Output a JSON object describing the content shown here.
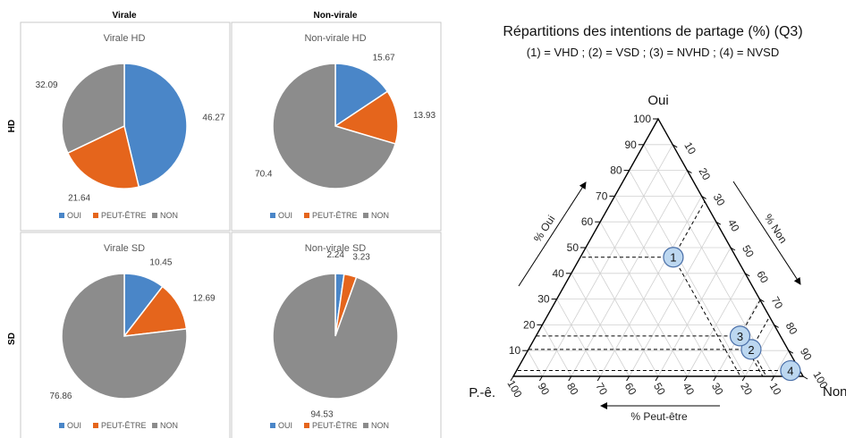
{
  "colors": {
    "oui": "#4a86c8",
    "peut_etre": "#e5651c",
    "non": "#8c8c8c",
    "panel_border": "#c8c8c8",
    "point_fill": "#bcd7f0",
    "point_stroke": "#4a6fa8",
    "grid": "#d0d0d0"
  },
  "left": {
    "col_headers": [
      "Virale",
      "Non-virale"
    ],
    "row_headers": [
      "HD",
      "SD"
    ],
    "legend_labels": [
      "OUI",
      "PEUT-ÊTRE",
      "NON"
    ]
  },
  "ternary_title": "Répartitions des intentions de partage (%) (Q3)",
  "ternary_subtitle": "(1) = VHD ; (2) = VSD ; (3) = NVHD ; (4) = NVSD",
  "chart_data": [
    {
      "type": "pie",
      "title": "Virale HD",
      "categories": [
        "OUI",
        "PEUT-ÊTRE",
        "NON"
      ],
      "values": [
        46.27,
        21.64,
        32.09
      ],
      "labels": [
        "46.27",
        "21.64",
        "32.09"
      ]
    },
    {
      "type": "pie",
      "title": "Non-virale HD",
      "categories": [
        "OUI",
        "PEUT-ÊTRE",
        "NON"
      ],
      "values": [
        15.67,
        13.93,
        70.4
      ],
      "labels": [
        "15.67",
        "13.93",
        "70.4"
      ]
    },
    {
      "type": "pie",
      "title": "Virale SD",
      "categories": [
        "OUI",
        "PEUT-ÊTRE",
        "NON"
      ],
      "values": [
        10.45,
        12.69,
        76.86
      ],
      "labels": [
        "10.45",
        "12.69",
        "76.86"
      ]
    },
    {
      "type": "pie",
      "title": "Non-virale SD",
      "categories": [
        "OUI",
        "PEUT-ÊTRE",
        "NON"
      ],
      "values": [
        2.24,
        3.23,
        94.53
      ],
      "labels": [
        "2.24",
        "3.23",
        "94.53"
      ]
    },
    {
      "type": "scatter",
      "subtype": "ternary",
      "title": "Répartitions des intentions de partage (%) (Q3)",
      "corner_labels": {
        "oui": "Oui",
        "peut_etre": "P.-ê.",
        "non": "Non"
      },
      "axis_labels": {
        "oui": "% Oui",
        "non": "% Non",
        "peut_etre": "% Peut-être"
      },
      "ticks": [
        10,
        20,
        30,
        40,
        50,
        60,
        70,
        80,
        90,
        100
      ],
      "grid": true,
      "points": [
        {
          "label": "1",
          "oui": 46.27,
          "peut_etre": 21.64,
          "non": 32.09
        },
        {
          "label": "2",
          "oui": 10.45,
          "peut_etre": 12.69,
          "non": 76.86
        },
        {
          "label": "3",
          "oui": 15.67,
          "peut_etre": 13.93,
          "non": 70.4
        },
        {
          "label": "4",
          "oui": 2.24,
          "peut_etre": 3.23,
          "non": 94.53
        }
      ]
    }
  ]
}
